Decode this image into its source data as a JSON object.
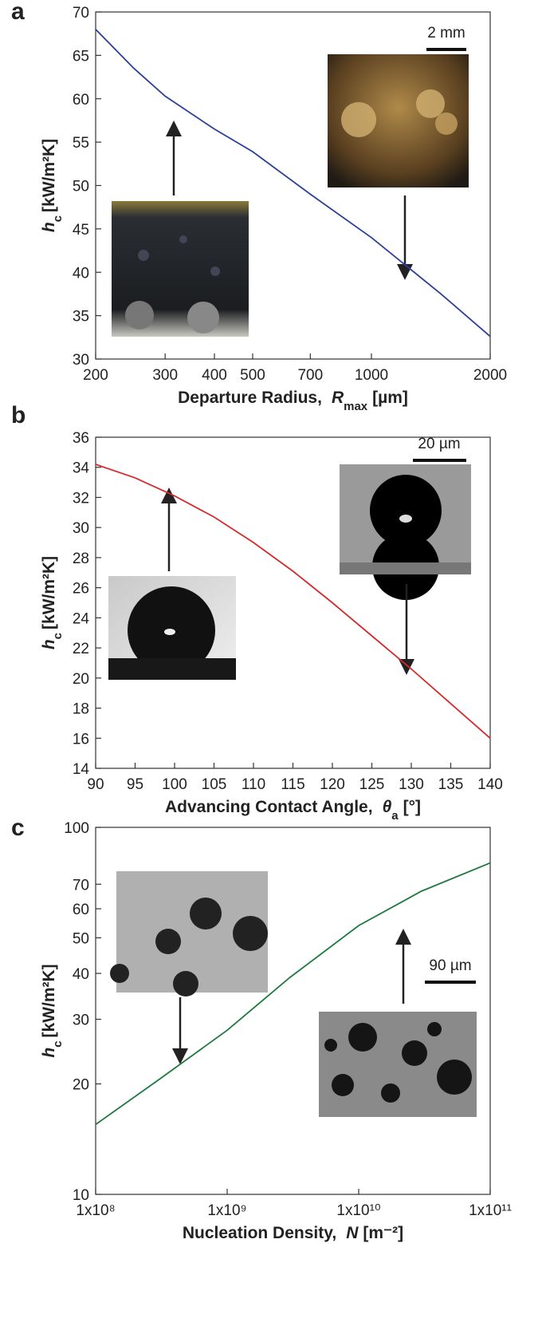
{
  "chart_data": [
    {
      "type": "line",
      "panel": "a",
      "x_label": {
        "text": "Departure Radius,",
        "symbol": "R",
        "sub": "max",
        "unit": "[µm]"
      },
      "y_label": {
        "symbol": "h",
        "sub": "c",
        "unit": "[kW/m²K]"
      },
      "scale_bar": "2 mm",
      "x": [
        200,
        250,
        300,
        400,
        500,
        700,
        1000,
        1500,
        2000
      ],
      "values": [
        68,
        63.5,
        60.3,
        56.5,
        53.9,
        49,
        44,
        37.5,
        32.6
      ],
      "color": "#2b3f9a",
      "xscale": "log",
      "yscale": "linear",
      "xlim": [
        200,
        2000
      ],
      "xticks": [
        200,
        300,
        400,
        500,
        700,
        1000,
        2000
      ],
      "ylim": [
        30,
        70
      ],
      "yticks": [
        30,
        35,
        40,
        45,
        50,
        55,
        60,
        65,
        70
      ]
    },
    {
      "type": "line",
      "panel": "b",
      "x_label": {
        "text": "Advancing Contact Angle,",
        "symbol": "θ",
        "sub": "a",
        "unit": "[°]"
      },
      "y_label": {
        "symbol": "h",
        "sub": "c",
        "unit": "[kW/m²K]"
      },
      "scale_bar": "20 µm",
      "x": [
        90,
        95,
        100,
        105,
        110,
        115,
        120,
        125,
        130,
        135,
        140
      ],
      "values": [
        34.2,
        33.3,
        32.1,
        30.7,
        29.0,
        27.1,
        25.0,
        22.8,
        20.6,
        18.3,
        16.0
      ],
      "color": "#d62a2a",
      "xscale": "linear",
      "yscale": "linear",
      "xlim": [
        90,
        140
      ],
      "xticks": [
        90,
        95,
        100,
        105,
        110,
        115,
        120,
        125,
        130,
        135,
        140
      ],
      "ylim": [
        14,
        36
      ],
      "yticks": [
        14,
        16,
        18,
        20,
        22,
        24,
        26,
        28,
        30,
        32,
        34,
        36
      ]
    },
    {
      "type": "line",
      "panel": "c",
      "x_label": {
        "text": "Nucleation Density,",
        "symbol": "N",
        "sub": "",
        "unit": "[m⁻²]"
      },
      "y_label": {
        "symbol": "h",
        "sub": "c",
        "unit": "[kW/m²K]"
      },
      "scale_bar": "90 µm",
      "x": [
        100000000,
        300000000,
        1000000000,
        3000000000,
        10000000000,
        30000000000,
        100000000000
      ],
      "values": [
        15.5,
        20.5,
        28,
        39,
        54,
        67,
        80
      ],
      "color": "#1e7a3c",
      "xscale": "log",
      "yscale": "log",
      "xlim": [
        100000000,
        100000000000
      ],
      "xticks": [
        {
          "value": 100000000,
          "label": "1x10⁸"
        },
        {
          "value": 1000000000,
          "label": "1x10⁹"
        },
        {
          "value": 10000000000,
          "label": "1x10¹⁰"
        },
        {
          "value": 100000000000,
          "label": "1x10¹¹"
        }
      ],
      "ylim": [
        10,
        100
      ],
      "yticks": [
        10,
        20,
        30,
        40,
        50,
        60,
        70,
        100
      ]
    }
  ]
}
